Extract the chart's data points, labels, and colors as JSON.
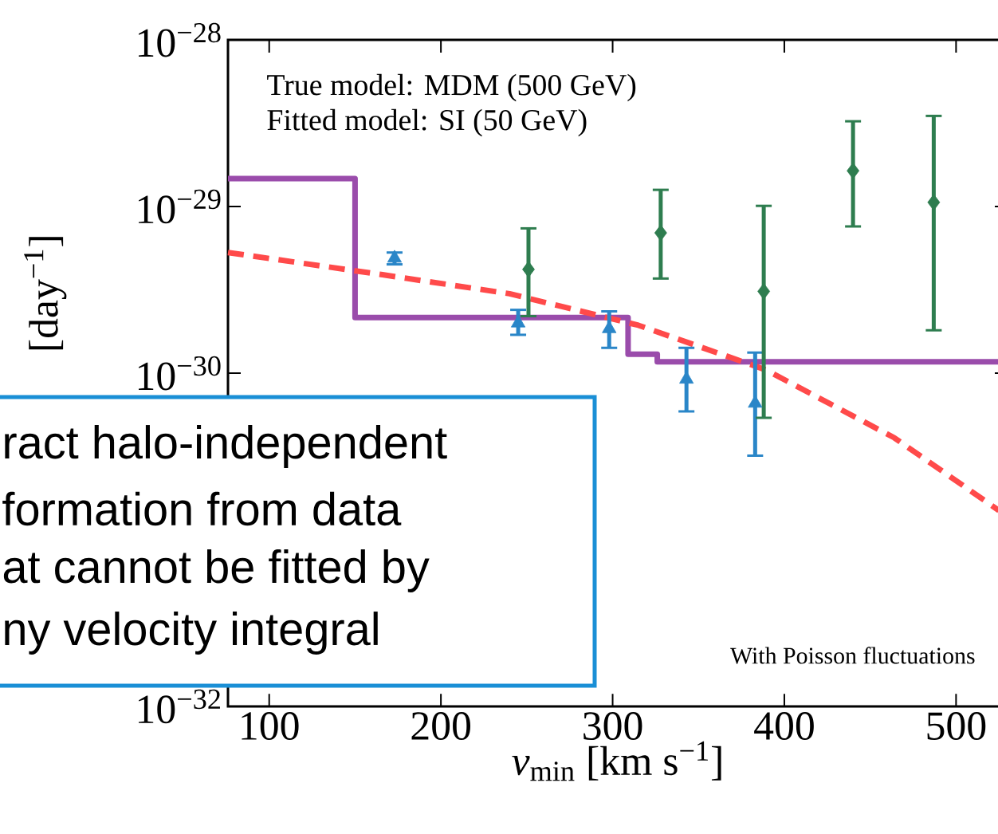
{
  "chart_data": {
    "type": "scatter",
    "xlabel": "*v*$_{min}$ [km s$^{−1}$]",
    "ylabel": "[day$^{−1}$]",
    "log": "y",
    "xlim": [
      76,
      530
    ],
    "ylim": [
      1e-32,
      1e-28
    ],
    "xticks": [
      100,
      200,
      300,
      400,
      500
    ],
    "yticks": [
      {
        "value": 1e-28,
        "label": "10$^{−28}$"
      },
      {
        "value": 1e-29,
        "label": "10$^{−29}$"
      },
      {
        "value": 1e-30,
        "label": "10$^{−30}$"
      },
      {
        "value": 1e-32,
        "label": "10$^{−32}$"
      }
    ],
    "series": [
      {
        "type": "step",
        "color": "#9a4cab",
        "marker": "none",
        "line_style": "solid",
        "x": [
          76,
          150,
          309,
          326,
          530
        ],
        "values": [
          1.47e-29,
          2.16e-30,
          1.3e-30,
          1.17e-30,
          1.17e-30
        ]
      },
      {
        "type": "line",
        "color": "#ff4a4a",
        "marker": "none",
        "line_style": "dashed",
        "x": [
          76,
          166,
          240,
          315,
          389,
          464,
          525
        ],
        "values": [
          5.3e-30,
          3.9e-30,
          3e-30,
          1.94e-30,
          1.05e-30,
          4.1e-31,
          1.5e-31
        ]
      },
      {
        "color": "#2a86c8",
        "marker": "triangle",
        "x": [
          173,
          245,
          298,
          343,
          383
        ],
        "values": [
          4.9e-30,
          2e-30,
          1.85e-30,
          9.2e-31,
          6.6e-31
        ],
        "errors": [
          [
            4.5e-30,
            5.3e-30
          ],
          [
            1.7e-30,
            2.4e-30
          ],
          [
            1.42e-30,
            2.35e-30
          ],
          [
            5.9e-31,
            1.42e-30
          ],
          [
            3.2e-31,
            1.33e-30
          ]
        ]
      },
      {
        "color": "#2e7d4f",
        "marker": "diamond",
        "x": [
          251,
          328,
          388,
          440,
          487
        ],
        "values": [
          4.2e-30,
          6.95e-30,
          3.1e-30,
          1.64e-29,
          1.06e-29
        ],
        "errors": [
          [
            2.2e-30,
            7.4e-30
          ],
          [
            3.7e-30,
            1.26e-29
          ],
          [
            5.4e-31,
            1.01e-29
          ],
          [
            7.6e-30,
            3.25e-29
          ],
          [
            1.81e-30,
            3.5e-29
          ]
        ]
      }
    ],
    "annotations": [
      "True model: MDM (500 GeV)",
      "Fitted model: SI (50 GeV)",
      "With Poisson fluctuations",
      "ract halo-independent",
      "formation from data",
      "at cannot be fitted by",
      "ny velocity integral"
    ]
  }
}
